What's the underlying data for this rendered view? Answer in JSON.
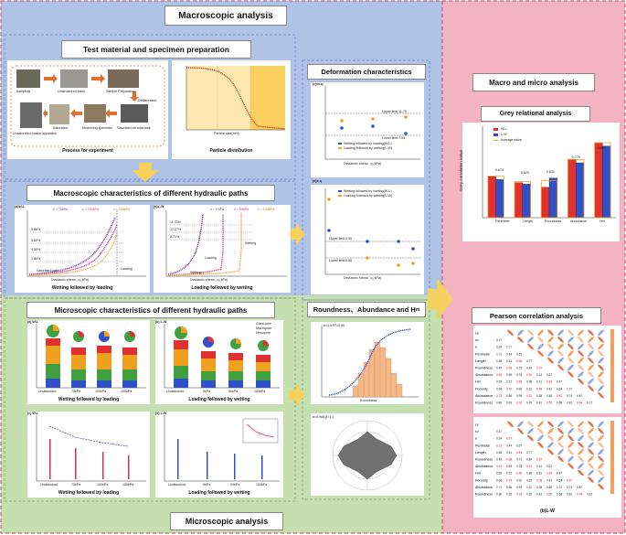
{
  "colors": {
    "blue_region": "#aec3e6",
    "green_region": "#c5dfb0",
    "pink_region": "#f4b3c2",
    "arrow": "#f3d15c",
    "bar_red": "#e03030",
    "bar_blue": "#3050c8",
    "bar_orange": "#f0a020"
  },
  "headers": {
    "macroscopic": "Macroscopic analysis",
    "microscopic": "Microscopic analysis",
    "macro_micro": "Macro and micro analysis"
  },
  "boxes": {
    "test_material": "Test material and specimen preparation",
    "macro_char": "Macroscopic characteristics of different hydraulic paths",
    "micro_char": "Microscopic characteristics of different hydraulic paths",
    "deformation": "Deformation characteristics",
    "roundness": "Roundness、Abundance and H",
    "roundness_sub": "m",
    "grey": "Grey relational analysis",
    "pearson": "Pearson correlation analysis"
  },
  "process": {
    "steps": [
      "Sampling",
      "Unstructured loess",
      "Sample Preparation",
      "Desaturation",
      "Saturation",
      "Moisturing specimen",
      "Saturated ceramic disk",
      "Unsaturated triaxial apparatus"
    ],
    "caption": "Process for experiment"
  },
  "particle": {
    "caption": "Particle distribution",
    "xlabel": "Particle size(mm)",
    "ylabel": "percentage passing by weight(%)"
  },
  "macro_plots": {
    "wl_tag": "(a)W-L",
    "lw_tag": "(b)L-W",
    "wl_caption": "Wetting followed by loading",
    "lw_caption": "Loading followed by wetting",
    "wl_xlabel": "Deviatoric stress , q (kPa)",
    "lw_xlabel": "Deviatoric stress , q (kPa)",
    "ylabel": "Deviatoric strain , εs (%)",
    "wl_legend": [
      "s = 75kPa",
      "s = 100kPa",
      "s = 150kPa"
    ],
    "lw_legend": [
      "s = 0 kPa",
      "s = 50kPa",
      "s = 100kPa"
    ],
    "wl_notes": [
      "3.66%",
      "5.82%",
      "4.50%",
      "1.80%",
      "Saturated path",
      "Loading"
    ],
    "lw_notes": [
      "11.72%",
      "12.27%",
      "8.71%",
      "Loading",
      "Wetting",
      "Wetting"
    ]
  },
  "micro_plots": {
    "wl_a": "(a) W-L",
    "lw_b": "(b) L-W",
    "wl_c": "(c) W-L",
    "lw_d": "(d) L-W",
    "caption_wl": "Wetting followed by loading",
    "caption_lw": "Loading followed by wetting",
    "pie_legend": [
      "Giant pore",
      "Macropore",
      "Mesopore",
      "Small pore",
      "Micropore"
    ],
    "bar_ylabel": "Pore area percentage (%)",
    "scatter_ylabel": "Pore Abundance",
    "x_wl": [
      "Undisturbed",
      "75kPa",
      "100kPa",
      "150kPa"
    ],
    "x_lw": [
      "Undisturbed",
      "0kPa",
      "50kPa",
      "100kPa"
    ]
  },
  "deformation": {
    "panel_c": "(c)εv-q",
    "panel_d": "(d)e-q",
    "c_ylabel": "Volumetric strain , εv (%)",
    "d_ylabel": "void ratio , e",
    "xlabel": "Deviatoric stress , q (kPa)",
    "c_upper": "Upper limit:11.75",
    "c_lower": "Lower limit:7.55",
    "d_upper": "Upper limit:0.90",
    "d_lower": "Lower limit:0.86",
    "legend": [
      "Wetting followed by loading(W-L)",
      "Loading followed by wetting(L-W)"
    ]
  },
  "roundness_plots": {
    "hist_tag": "α=1.0 R²=0.99",
    "hist_ylabel": "Relative frequency",
    "hist_xlabel": "Roundness",
    "rose_tag": "α=0.906 β=1.1"
  },
  "grey": {
    "legend": [
      "W-L",
      "L-W",
      "Average value"
    ],
    "ylabel": "Grey correlation value",
    "categories": [
      "Perimeter",
      "Length",
      "Roundness",
      "Abundance",
      "Hm"
    ],
    "values": [
      "0.670",
      "0.625",
      "0.630",
      "0.770",
      "0.880"
    ]
  },
  "chart_data": {
    "type": "bar",
    "title": "Grey relational analysis",
    "ylabel": "Grey correlation value",
    "categories": [
      "Perimeter",
      "Length",
      "Roundness",
      "Abundance",
      "Hm"
    ],
    "series": [
      {
        "name": "W-L",
        "values": [
          0.67,
          0.63,
          0.6,
          0.78,
          0.89
        ]
      },
      {
        "name": "L-W",
        "values": [
          0.65,
          0.62,
          0.66,
          0.76,
          0.87
        ]
      }
    ],
    "ylim": [
      0.4,
      1.0
    ]
  },
  "pearson": {
    "vars": [
      "εs",
      "εv",
      "e",
      "Perimeter",
      "Length",
      "Roundness",
      "Abundance",
      "Hm",
      "Porosity",
      "Abundance",
      "Roundness"
    ],
    "wl_tag": "(a)W-L",
    "lw_tag": "(b)L-W"
  }
}
